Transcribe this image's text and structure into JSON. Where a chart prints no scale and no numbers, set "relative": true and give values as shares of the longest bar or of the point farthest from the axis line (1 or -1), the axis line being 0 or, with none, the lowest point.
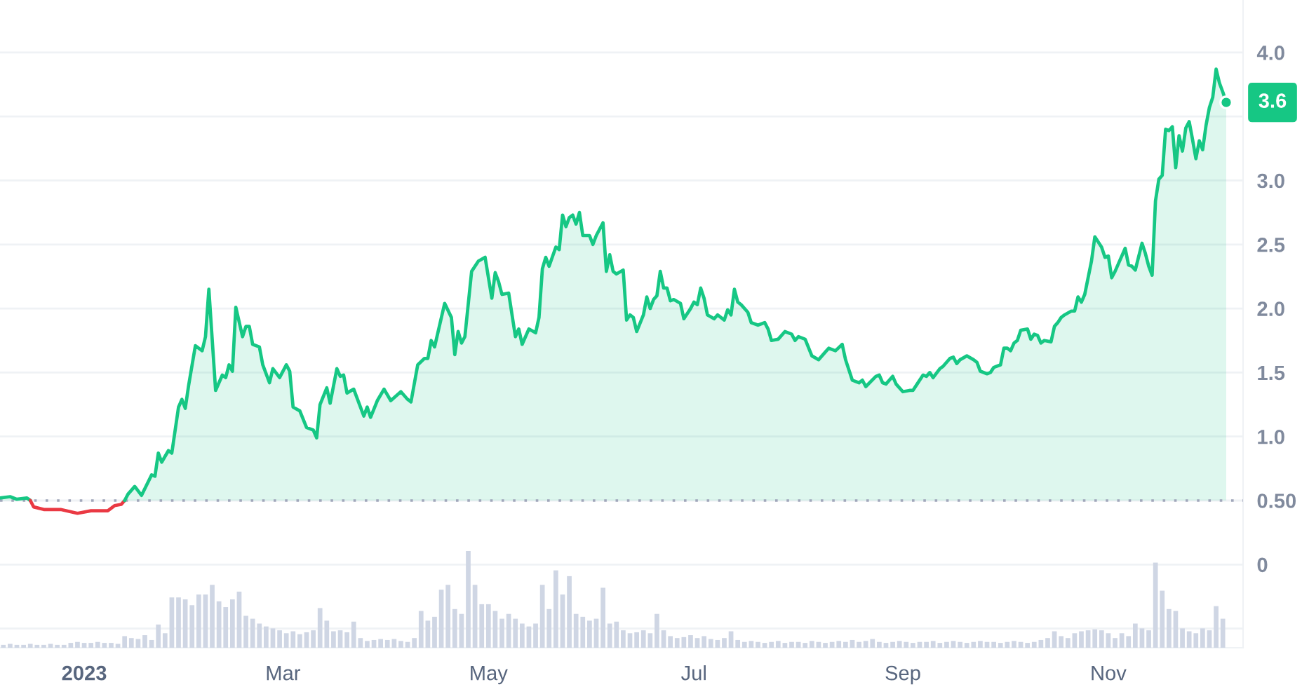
{
  "chart_data": [
    {
      "type": "area",
      "series": [
        {
          "type": "area",
          "color": "#16c784",
          "x": [
            "2022-12-07",
            "2022-12-10",
            "2022-12-12",
            "2022-12-15",
            "2022-12-16"
          ],
          "values": [
            0.52,
            0.53,
            0.51,
            0.52,
            0.5
          ]
        },
        {
          "type": "line",
          "color": "#ea3943",
          "x": [
            "2022-12-16",
            "2022-12-17",
            "2022-12-20",
            "2022-12-25",
            "2022-12-30",
            "2023-01-03",
            "2023-01-08",
            "2023-01-10",
            "2023-01-12",
            "2023-01-13"
          ],
          "values": [
            0.5,
            0.45,
            0.43,
            0.43,
            0.4,
            0.42,
            0.42,
            0.46,
            0.47,
            0.5
          ]
        },
        {
          "type": "area",
          "color": "#16c784",
          "x": [
            "2023-01-13",
            "2023-01-14",
            "2023-01-16",
            "2023-01-18",
            "2023-01-21",
            "2023-01-22",
            "2023-01-23",
            "2023-01-24",
            "2023-01-26",
            "2023-01-27",
            "2023-01-29",
            "2023-01-30",
            "2023-01-31",
            "2023-02-01",
            "2023-02-03",
            "2023-02-05",
            "2023-02-06",
            "2023-02-07",
            "2023-02-09",
            "2023-02-11",
            "2023-02-12",
            "2023-02-13",
            "2023-02-14",
            "2023-02-15",
            "2023-02-17",
            "2023-02-18",
            "2023-02-19",
            "2023-02-20",
            "2023-02-22",
            "2023-02-23",
            "2023-02-25",
            "2023-02-26",
            "2023-02-28",
            "2023-03-02",
            "2023-03-03",
            "2023-03-04",
            "2023-03-06",
            "2023-03-08",
            "2023-03-10",
            "2023-03-11",
            "2023-03-12",
            "2023-03-14",
            "2023-03-15",
            "2023-03-17",
            "2023-03-18",
            "2023-03-19",
            "2023-03-20",
            "2023-03-22",
            "2023-03-25",
            "2023-03-26",
            "2023-03-27",
            "2023-03-29",
            "2023-03-31",
            "2023-04-02",
            "2023-04-05",
            "2023-04-07",
            "2023-04-08",
            "2023-04-10",
            "2023-04-12",
            "2023-04-13",
            "2023-04-14",
            "2023-04-15",
            "2023-04-18",
            "2023-04-20",
            "2023-04-21",
            "2023-04-22",
            "2023-04-23",
            "2023-04-24",
            "2023-04-26",
            "2023-04-28",
            "2023-04-30",
            "2023-05-02",
            "2023-05-03",
            "2023-05-04",
            "2023-05-05",
            "2023-05-07",
            "2023-05-09",
            "2023-05-10",
            "2023-05-11",
            "2023-05-13",
            "2023-05-15",
            "2023-05-16",
            "2023-05-17",
            "2023-05-18",
            "2023-05-19",
            "2023-05-21",
            "2023-05-22",
            "2023-05-23",
            "2023-05-24",
            "2023-05-25",
            "2023-05-26",
            "2023-05-27",
            "2023-05-28",
            "2023-05-29",
            "2023-05-31",
            "2023-06-01",
            "2023-06-02",
            "2023-06-04",
            "2023-06-05",
            "2023-06-06",
            "2023-06-07",
            "2023-06-08",
            "2023-06-10",
            "2023-06-11",
            "2023-06-12",
            "2023-06-13",
            "2023-06-14",
            "2023-06-16",
            "2023-06-17",
            "2023-06-18",
            "2023-06-19",
            "2023-06-20",
            "2023-06-21",
            "2023-06-22",
            "2023-06-23",
            "2023-06-24",
            "2023-06-25",
            "2023-06-27",
            "2023-06-28",
            "2023-06-30",
            "2023-07-01",
            "2023-07-02",
            "2023-07-03",
            "2023-07-04",
            "2023-07-05",
            "2023-07-07",
            "2023-07-08",
            "2023-07-10",
            "2023-07-11",
            "2023-07-12",
            "2023-07-13",
            "2023-07-14",
            "2023-07-15",
            "2023-07-17",
            "2023-07-18",
            "2023-07-20",
            "2023-07-22",
            "2023-07-23",
            "2023-07-24",
            "2023-07-26",
            "2023-07-28",
            "2023-07-30",
            "2023-07-31",
            "2023-08-01",
            "2023-08-03",
            "2023-08-05",
            "2023-08-07",
            "2023-08-09",
            "2023-08-10",
            "2023-08-12",
            "2023-08-14",
            "2023-08-15",
            "2023-08-17",
            "2023-08-19",
            "2023-08-20",
            "2023-08-21",
            "2023-08-24",
            "2023-08-25",
            "2023-08-26",
            "2023-08-27",
            "2023-08-29",
            "2023-08-30",
            "2023-09-01",
            "2023-09-03",
            "2023-09-04",
            "2023-09-05",
            "2023-09-07",
            "2023-09-08",
            "2023-09-09",
            "2023-09-10",
            "2023-09-12",
            "2023-09-13",
            "2023-09-15",
            "2023-09-16",
            "2023-09-17",
            "2023-09-18",
            "2023-09-20",
            "2023-09-22",
            "2023-09-23",
            "2023-09-24",
            "2023-09-26",
            "2023-09-27",
            "2023-09-28",
            "2023-09-29",
            "2023-09-30",
            "2023-10-01",
            "2023-10-02",
            "2023-10-03",
            "2023-10-04",
            "2023-10-05",
            "2023-10-06",
            "2023-10-08",
            "2023-10-09",
            "2023-10-10",
            "2023-10-11",
            "2023-10-12",
            "2023-10-13",
            "2023-10-15",
            "2023-10-16",
            "2023-10-17",
            "2023-10-18",
            "2023-10-19",
            "2023-10-21",
            "2023-10-22",
            "2023-10-23",
            "2023-10-24",
            "2023-10-25",
            "2023-10-26",
            "2023-10-27",
            "2023-10-28",
            "2023-10-30",
            "2023-10-31",
            "2023-11-01",
            "2023-11-02",
            "2023-11-03",
            "2023-11-04",
            "2023-11-06",
            "2023-11-07",
            "2023-11-08",
            "2023-11-09",
            "2023-11-11",
            "2023-11-12",
            "2023-11-13",
            "2023-11-14",
            "2023-11-15",
            "2023-11-16",
            "2023-11-17",
            "2023-11-18",
            "2023-11-19",
            "2023-11-20",
            "2023-11-21",
            "2023-11-22",
            "2023-11-23",
            "2023-11-24",
            "2023-11-25",
            "2023-11-26",
            "2023-11-27",
            "2023-11-28",
            "2023-11-29",
            "2023-11-30",
            "2023-12-01",
            "2023-12-02",
            "2023-12-03",
            "2023-12-04",
            "2023-12-05",
            "2023-12-06"
          ],
          "values": [
            0.5,
            0.55,
            0.61,
            0.54,
            0.7,
            0.69,
            0.87,
            0.8,
            0.89,
            0.87,
            1.23,
            1.29,
            1.22,
            1.4,
            1.71,
            1.67,
            1.78,
            2.15,
            1.36,
            1.48,
            1.46,
            1.56,
            1.51,
            2.01,
            1.78,
            1.86,
            1.86,
            1.72,
            1.7,
            1.56,
            1.42,
            1.53,
            1.46,
            1.56,
            1.51,
            1.23,
            1.2,
            1.07,
            1.05,
            0.99,
            1.25,
            1.38,
            1.26,
            1.53,
            1.47,
            1.48,
            1.34,
            1.37,
            1.16,
            1.23,
            1.15,
            1.28,
            1.37,
            1.28,
            1.35,
            1.29,
            1.27,
            1.56,
            1.61,
            1.61,
            1.75,
            1.7,
            2.04,
            1.93,
            1.64,
            1.82,
            1.73,
            1.78,
            2.29,
            2.37,
            2.4,
            2.08,
            2.28,
            2.21,
            2.11,
            2.12,
            1.78,
            1.84,
            1.72,
            1.84,
            1.81,
            1.93,
            2.31,
            2.4,
            2.33,
            2.48,
            2.46,
            2.73,
            2.64,
            2.71,
            2.73,
            2.66,
            2.75,
            2.57,
            2.57,
            2.5,
            2.57,
            2.67,
            2.29,
            2.42,
            2.29,
            2.27,
            2.3,
            1.91,
            1.95,
            1.93,
            1.82,
            1.95,
            2.09,
            2.0,
            2.07,
            2.1,
            2.29,
            2.16,
            2.16,
            2.06,
            2.07,
            2.04,
            1.92,
            2.0,
            2.05,
            2.03,
            2.16,
            2.08,
            1.95,
            1.92,
            1.95,
            1.91,
            1.99,
            1.95,
            2.15,
            2.05,
            2.03,
            1.97,
            1.89,
            1.87,
            1.89,
            1.84,
            1.75,
            1.76,
            1.82,
            1.8,
            1.75,
            1.78,
            1.76,
            1.63,
            1.6,
            1.66,
            1.69,
            1.67,
            1.72,
            1.6,
            1.44,
            1.42,
            1.44,
            1.39,
            1.47,
            1.48,
            1.42,
            1.41,
            1.47,
            1.41,
            1.35,
            1.36,
            1.36,
            1.4,
            1.48,
            1.47,
            1.5,
            1.46,
            1.53,
            1.55,
            1.61,
            1.62,
            1.57,
            1.6,
            1.63,
            1.6,
            1.58,
            1.51,
            1.49,
            1.5,
            1.54,
            1.55,
            1.56,
            1.69,
            1.69,
            1.67,
            1.73,
            1.75,
            1.83,
            1.84,
            1.76,
            1.8,
            1.79,
            1.73,
            1.75,
            1.74,
            1.86,
            1.89,
            1.93,
            1.95,
            1.98,
            1.98,
            2.09,
            2.05,
            2.11,
            2.24,
            2.37,
            2.56,
            2.48,
            2.4,
            2.41,
            2.24,
            2.29,
            2.35,
            2.47,
            2.34,
            2.33,
            2.3,
            2.51,
            2.43,
            2.33,
            2.26,
            2.84,
            3.01,
            3.04,
            3.4,
            3.39,
            3.42,
            3.1,
            3.35,
            3.23,
            3.41,
            3.46,
            3.32,
            3.17,
            3.31,
            3.24,
            3.43,
            3.57,
            3.65,
            3.87,
            3.76,
            3.69,
            3.61
          ]
        }
      ],
      "xlim": [
        "2022-12-07",
        "2023-12-11"
      ],
      "ylim": [
        -0.65,
        4.41
      ],
      "yticks": [
        {
          "value": -0.5,
          "label": null
        },
        0,
        {
          "value": 0.5,
          "label": "0.50"
        },
        {
          "value": 1,
          "label": "1.0"
        },
        1.5,
        {
          "value": 2,
          "label": "2.0"
        },
        2.5,
        {
          "value": 3,
          "label": "3.0"
        },
        {
          "value": 3.5,
          "label": null
        },
        {
          "value": 4,
          "label": "4.0"
        }
      ],
      "grid": "y",
      "ref_lines": [
        {
          "axis": "y",
          "value": 0.5,
          "color": "#a1a7bb",
          "line_style": "dotted"
        }
      ],
      "annotations": [
        {
          "text": "3.6",
          "x": "2023-12-06",
          "y": 3.61
        }
      ],
      "tick_labels": "y"
    },
    {
      "type": "bar",
      "relative": true,
      "color": "#cfd6e4",
      "tick_labels": "x",
      "xlim": [
        "2022-12-07",
        "2023-12-11"
      ],
      "xticks": [
        {
          "value": "2023-01-01",
          "label": "2023"
        },
        {
          "value": "2023-03-01",
          "label": "Mar"
        },
        {
          "value": "2023-05-01",
          "label": "May"
        },
        {
          "value": "2023-07-01",
          "label": "Jul"
        },
        {
          "value": "2023-09-01",
          "label": "Sep"
        },
        {
          "value": "2023-11-01",
          "label": "Nov"
        }
      ],
      "x": [
        "2022-12-08",
        "2022-12-10",
        "2022-12-12",
        "2022-12-14",
        "2022-12-16",
        "2022-12-18",
        "2022-12-20",
        "2022-12-22",
        "2022-12-24",
        "2022-12-26",
        "2022-12-28",
        "2022-12-30",
        "2023-01-01",
        "2023-01-03",
        "2023-01-05",
        "2023-01-07",
        "2023-01-09",
        "2023-01-11",
        "2023-01-13",
        "2023-01-15",
        "2023-01-17",
        "2023-01-19",
        "2023-01-21",
        "2023-01-23",
        "2023-01-25",
        "2023-01-27",
        "2023-01-29",
        "2023-01-31",
        "2023-02-02",
        "2023-02-04",
        "2023-02-06",
        "2023-02-08",
        "2023-02-10",
        "2023-02-12",
        "2023-02-14",
        "2023-02-16",
        "2023-02-18",
        "2023-02-20",
        "2023-02-22",
        "2023-02-24",
        "2023-02-26",
        "2023-02-28",
        "2023-03-02",
        "2023-03-04",
        "2023-03-06",
        "2023-03-08",
        "2023-03-10",
        "2023-03-12",
        "2023-03-14",
        "2023-03-16",
        "2023-03-18",
        "2023-03-20",
        "2023-03-22",
        "2023-03-24",
        "2023-03-26",
        "2023-03-28",
        "2023-03-30",
        "2023-04-01",
        "2023-04-03",
        "2023-04-05",
        "2023-04-07",
        "2023-04-09",
        "2023-04-11",
        "2023-04-13",
        "2023-04-15",
        "2023-04-17",
        "2023-04-19",
        "2023-04-21",
        "2023-04-23",
        "2023-04-25",
        "2023-04-27",
        "2023-04-29",
        "2023-05-01",
        "2023-05-03",
        "2023-05-05",
        "2023-05-07",
        "2023-05-09",
        "2023-05-11",
        "2023-05-13",
        "2023-05-15",
        "2023-05-17",
        "2023-05-19",
        "2023-05-21",
        "2023-05-23",
        "2023-05-25",
        "2023-05-27",
        "2023-05-29",
        "2023-05-31",
        "2023-06-02",
        "2023-06-04",
        "2023-06-06",
        "2023-06-08",
        "2023-06-10",
        "2023-06-12",
        "2023-06-14",
        "2023-06-16",
        "2023-06-18",
        "2023-06-20",
        "2023-06-22",
        "2023-06-24",
        "2023-06-26",
        "2023-06-28",
        "2023-06-30",
        "2023-07-02",
        "2023-07-04",
        "2023-07-06",
        "2023-07-08",
        "2023-07-10",
        "2023-07-12",
        "2023-07-14",
        "2023-07-16",
        "2023-07-18",
        "2023-07-20",
        "2023-07-22",
        "2023-07-24",
        "2023-07-26",
        "2023-07-28",
        "2023-07-30",
        "2023-08-01",
        "2023-08-03",
        "2023-08-05",
        "2023-08-07",
        "2023-08-09",
        "2023-08-11",
        "2023-08-13",
        "2023-08-15",
        "2023-08-17",
        "2023-08-19",
        "2023-08-21",
        "2023-08-23",
        "2023-08-25",
        "2023-08-27",
        "2023-08-29",
        "2023-08-31",
        "2023-09-02",
        "2023-09-04",
        "2023-09-06",
        "2023-09-08",
        "2023-09-10",
        "2023-09-12",
        "2023-09-14",
        "2023-09-16",
        "2023-09-18",
        "2023-09-20",
        "2023-09-22",
        "2023-09-24",
        "2023-09-26",
        "2023-09-28",
        "2023-09-30",
        "2023-10-02",
        "2023-10-04",
        "2023-10-06",
        "2023-10-08",
        "2023-10-10",
        "2023-10-12",
        "2023-10-14",
        "2023-10-16",
        "2023-10-18",
        "2023-10-20",
        "2023-10-22",
        "2023-10-24",
        "2023-10-26",
        "2023-10-28",
        "2023-10-30",
        "2023-11-01",
        "2023-11-03",
        "2023-11-05",
        "2023-11-07",
        "2023-11-09",
        "2023-11-11",
        "2023-11-13",
        "2023-11-15",
        "2023-11-17",
        "2023-11-19",
        "2023-11-21",
        "2023-11-23",
        "2023-11-25",
        "2023-11-27",
        "2023-11-29",
        "2023-12-01",
        "2023-12-03",
        "2023-12-05"
      ],
      "values": [
        0.03,
        0.04,
        0.03,
        0.03,
        0.04,
        0.03,
        0.03,
        0.04,
        0.03,
        0.03,
        0.05,
        0.06,
        0.05,
        0.05,
        0.06,
        0.05,
        0.05,
        0.04,
        0.12,
        0.1,
        0.09,
        0.13,
        0.08,
        0.24,
        0.15,
        0.52,
        0.52,
        0.5,
        0.44,
        0.55,
        0.55,
        0.65,
        0.48,
        0.42,
        0.5,
        0.58,
        0.33,
        0.3,
        0.25,
        0.22,
        0.2,
        0.18,
        0.15,
        0.17,
        0.14,
        0.16,
        0.18,
        0.41,
        0.28,
        0.17,
        0.18,
        0.16,
        0.27,
        0.1,
        0.07,
        0.08,
        0.09,
        0.08,
        0.09,
        0.07,
        0.06,
        0.1,
        0.38,
        0.28,
        0.32,
        0.6,
        0.65,
        0.4,
        0.35,
        1.0,
        0.65,
        0.45,
        0.45,
        0.38,
        0.3,
        0.35,
        0.3,
        0.25,
        0.22,
        0.25,
        0.65,
        0.4,
        0.8,
        0.55,
        0.74,
        0.35,
        0.32,
        0.28,
        0.3,
        0.62,
        0.25,
        0.27,
        0.18,
        0.15,
        0.16,
        0.18,
        0.15,
        0.35,
        0.18,
        0.12,
        0.1,
        0.11,
        0.13,
        0.1,
        0.12,
        0.09,
        0.08,
        0.1,
        0.17,
        0.08,
        0.06,
        0.07,
        0.06,
        0.05,
        0.06,
        0.07,
        0.05,
        0.06,
        0.06,
        0.05,
        0.07,
        0.06,
        0.05,
        0.06,
        0.07,
        0.06,
        0.08,
        0.06,
        0.07,
        0.09,
        0.06,
        0.05,
        0.06,
        0.07,
        0.06,
        0.05,
        0.06,
        0.06,
        0.07,
        0.05,
        0.06,
        0.07,
        0.06,
        0.05,
        0.06,
        0.07,
        0.06,
        0.06,
        0.05,
        0.06,
        0.07,
        0.06,
        0.05,
        0.06,
        0.08,
        0.1,
        0.17,
        0.12,
        0.1,
        0.15,
        0.17,
        0.18,
        0.19,
        0.18,
        0.15,
        0.1,
        0.15,
        0.12,
        0.25,
        0.2,
        0.18,
        0.88,
        0.59,
        0.4,
        0.38,
        0.2,
        0.17,
        0.15,
        0.2,
        0.18,
        0.43,
        0.3
      ]
    }
  ]
}
